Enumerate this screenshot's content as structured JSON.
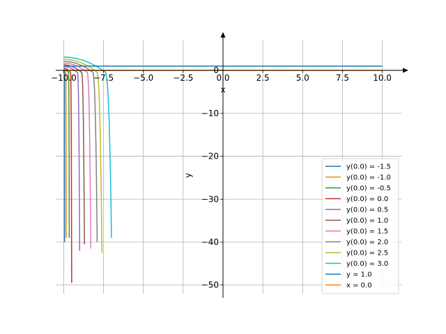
{
  "chart_data": {
    "type": "line",
    "xlabel": "x",
    "ylabel": "y",
    "xlim": [
      -10.5,
      11.2
    ],
    "ylim": [
      -52,
      7
    ],
    "xticks": [
      -10.0,
      -7.5,
      -5.0,
      -2.5,
      0.0,
      2.5,
      5.0,
      7.5,
      10.0
    ],
    "xtick_labels": [
      "−10.0",
      "−7.5",
      "−5.0",
      "−2.5",
      "0.0",
      "2.5",
      "5.0",
      "7.5",
      "10.0"
    ],
    "yticks": [
      0,
      -10,
      -20,
      -30,
      -40,
      -50
    ],
    "ytick_labels": [
      "0",
      "−10",
      "−20",
      "−30",
      "−40",
      "−50"
    ],
    "grid": true,
    "legend_position": "lower-right",
    "series": [
      {
        "name": "y(0.0) = -1.5",
        "color": "#1f77b4",
        "blowup_x": -9.95,
        "start_y": -0.1,
        "end_y": -40.0,
        "kind": "curve"
      },
      {
        "name": "y(0.0) = -1.0",
        "color": "#ff7f0e",
        "blowup_x": -9.85,
        "start_y": 0.0,
        "end_y": -39.0,
        "kind": "curve"
      },
      {
        "name": "y(0.0) = -0.5",
        "color": "#2ca02c",
        "blowup_x": -9.65,
        "start_y": 0.2,
        "end_y": -39.0,
        "kind": "curve"
      },
      {
        "name": "y(0.0) = 0.0",
        "color": "#d62728",
        "blowup_x": -9.5,
        "start_y": 0.5,
        "end_y": -49.5,
        "kind": "curve"
      },
      {
        "name": "y(0.0) = 0.5",
        "color": "#9467bd",
        "blowup_x": -9.0,
        "start_y": 0.9,
        "end_y": -42.0,
        "kind": "curve"
      },
      {
        "name": "y(0.0) = 1.0",
        "color": "#8c564b",
        "blowup_x": -8.7,
        "start_y": 1.3,
        "end_y": -40.5,
        "kind": "curve"
      },
      {
        "name": "y(0.0) = 1.5",
        "color": "#e377c2",
        "blowup_x": -8.3,
        "start_y": 1.7,
        "end_y": -41.5,
        "kind": "curve"
      },
      {
        "name": "y(0.0) = 2.0",
        "color": "#7f7f7f",
        "blowup_x": -7.9,
        "start_y": 2.1,
        "end_y": -40.0,
        "kind": "curve"
      },
      {
        "name": "y(0.0) = 2.5",
        "color": "#bcbd22",
        "blowup_x": -7.6,
        "start_y": 2.6,
        "end_y": -42.5,
        "kind": "curve"
      },
      {
        "name": "y(0.0) = 3.0",
        "color": "#17becf",
        "blowup_x": -7.0,
        "start_y": 3.1,
        "end_y": -39.0,
        "kind": "curve"
      },
      {
        "name": "y = 1.0",
        "color": "#1f77b4",
        "kind": "hline",
        "y": 1.0,
        "x_range": [
          -10.0,
          10.0
        ]
      },
      {
        "name": "x = 0.0",
        "color": "#ff7f0e",
        "kind": "hline",
        "y": 0.0,
        "x_range": [
          -10.0,
          10.0
        ]
      }
    ]
  }
}
